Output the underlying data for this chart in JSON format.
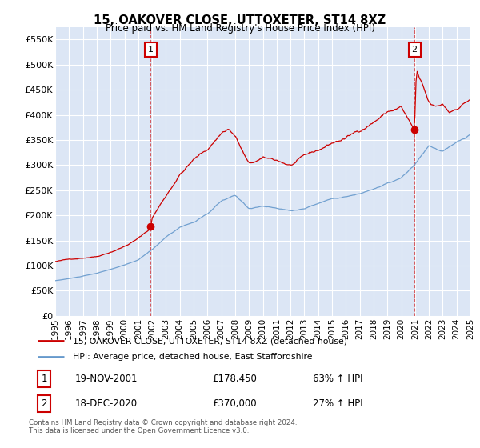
{
  "title": "15, OAKOVER CLOSE, UTTOXETER, ST14 8XZ",
  "subtitle": "Price paid vs. HM Land Registry's House Price Index (HPI)",
  "background_color": "#dce6f5",
  "plot_bg_color": "#dce6f5",
  "ylim": [
    0,
    575000
  ],
  "yticks": [
    0,
    50000,
    100000,
    150000,
    200000,
    250000,
    300000,
    350000,
    400000,
    450000,
    500000,
    550000
  ],
  "ytick_labels": [
    "£0",
    "£50K",
    "£100K",
    "£150K",
    "£200K",
    "£250K",
    "£300K",
    "£350K",
    "£400K",
    "£450K",
    "£500K",
    "£550K"
  ],
  "xmin_year": 1995,
  "xmax_year": 2025,
  "xtick_years": [
    1995,
    1996,
    1997,
    1998,
    1999,
    2000,
    2001,
    2002,
    2003,
    2004,
    2005,
    2006,
    2007,
    2008,
    2009,
    2010,
    2011,
    2012,
    2013,
    2014,
    2015,
    2016,
    2017,
    2018,
    2019,
    2020,
    2021,
    2022,
    2023,
    2024,
    2025
  ],
  "sale1_x": 2001.89,
  "sale1_y": 178450,
  "sale1_label": "1",
  "sale1_date": "19-NOV-2001",
  "sale1_price": "£178,450",
  "sale1_hpi": "63% ↑ HPI",
  "sale2_x": 2020.96,
  "sale2_y": 370000,
  "sale2_label": "2",
  "sale2_date": "18-DEC-2020",
  "sale2_price": "£370,000",
  "sale2_hpi": "27% ↑ HPI",
  "red_line_color": "#cc0000",
  "blue_line_color": "#6699cc",
  "grid_color": "#ffffff",
  "legend_label_red": "15, OAKOVER CLOSE, UTTOXETER, ST14 8XZ (detached house)",
  "legend_label_blue": "HPI: Average price, detached house, East Staffordshire",
  "footer_line1": "Contains HM Land Registry data © Crown copyright and database right 2024.",
  "footer_line2": "This data is licensed under the Open Government Licence v3.0."
}
